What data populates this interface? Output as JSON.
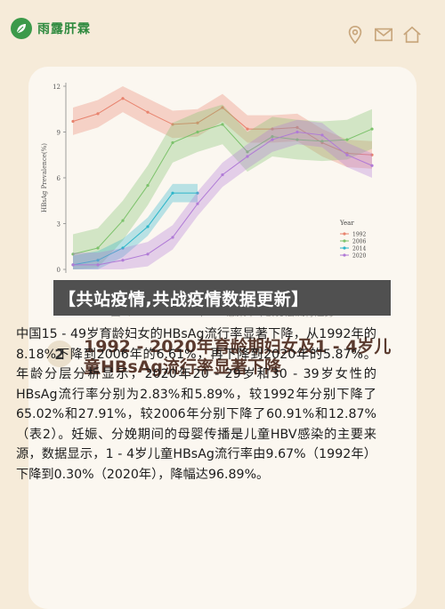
{
  "header": {
    "logo_text": "雨露肝霖",
    "icons": [
      "location-icon",
      "mail-icon",
      "home-icon"
    ]
  },
  "banner": {
    "text": "【共站疫情,共战疫情数据更新】"
  },
  "figure": {
    "caption": "图1：1992 - 2020年HBV感染率年龄分层流行趋势"
  },
  "chart_data": {
    "type": "line",
    "ylabel": "HBsAg Prevalence(%)",
    "yticks": [
      "0",
      "3",
      "6",
      "9",
      "12"
    ],
    "ylim": [
      0,
      12
    ],
    "x": [
      0,
      1,
      2,
      3,
      4,
      5,
      6,
      7,
      8,
      9,
      10,
      11,
      12
    ],
    "legend_title": "Year",
    "series": [
      {
        "name": "1992",
        "color": "#e8836e",
        "values": [
          9.7,
          10.2,
          11.2,
          10.3,
          9.5,
          9.6,
          10.6,
          9.2,
          9.2,
          9.3,
          8.3,
          7.6,
          7.5
        ],
        "band": 0.9
      },
      {
        "name": "2006",
        "color": "#7cc26b",
        "values": [
          1.0,
          1.4,
          3.2,
          5.5,
          8.3,
          9.0,
          9.5,
          7.7,
          8.7,
          8.5,
          8.4,
          8.5,
          9.2
        ],
        "band": 1.3
      },
      {
        "name": "2014",
        "color": "#2bb5c9",
        "values": [
          0.3,
          0.6,
          1.4,
          2.8,
          5.0,
          5.0,
          null,
          null,
          null,
          null,
          null,
          null,
          null
        ],
        "band": 0.6
      },
      {
        "name": "2020",
        "color": "#b07ad6",
        "values": [
          0.3,
          0.3,
          0.6,
          1.0,
          2.1,
          4.3,
          6.2,
          7.4,
          8.5,
          9.0,
          8.8,
          7.5,
          6.8
        ],
        "band": 0.8
      }
    ]
  },
  "section": {
    "number": "2",
    "title": "1992 - 2020年育龄期妇女及1 - 4岁儿童HBsAg流行率显著下降",
    "body": "中国15 - 49岁育龄妇女的HBsAg流行率显著下降，从1992年的8.18%下降到2006年的6.61%，再下降到2020年的5.87%。年龄分层分析显示，2020年20 - 29岁和30 - 39岁女性的HBsAg流行率分别为2.83%和5.89%，较1992年分别下降了65.02%和27.91%，较2006年分别下降了60.91%和12.87%（表2）。妊娠、分娩期间的母婴传播是儿童HBV感染的主要来源，数据显示，1 - 4岁儿童HBsAg流行率由9.67%（1992年）下降到0.30%（2020年），降幅达96.89%。"
  }
}
